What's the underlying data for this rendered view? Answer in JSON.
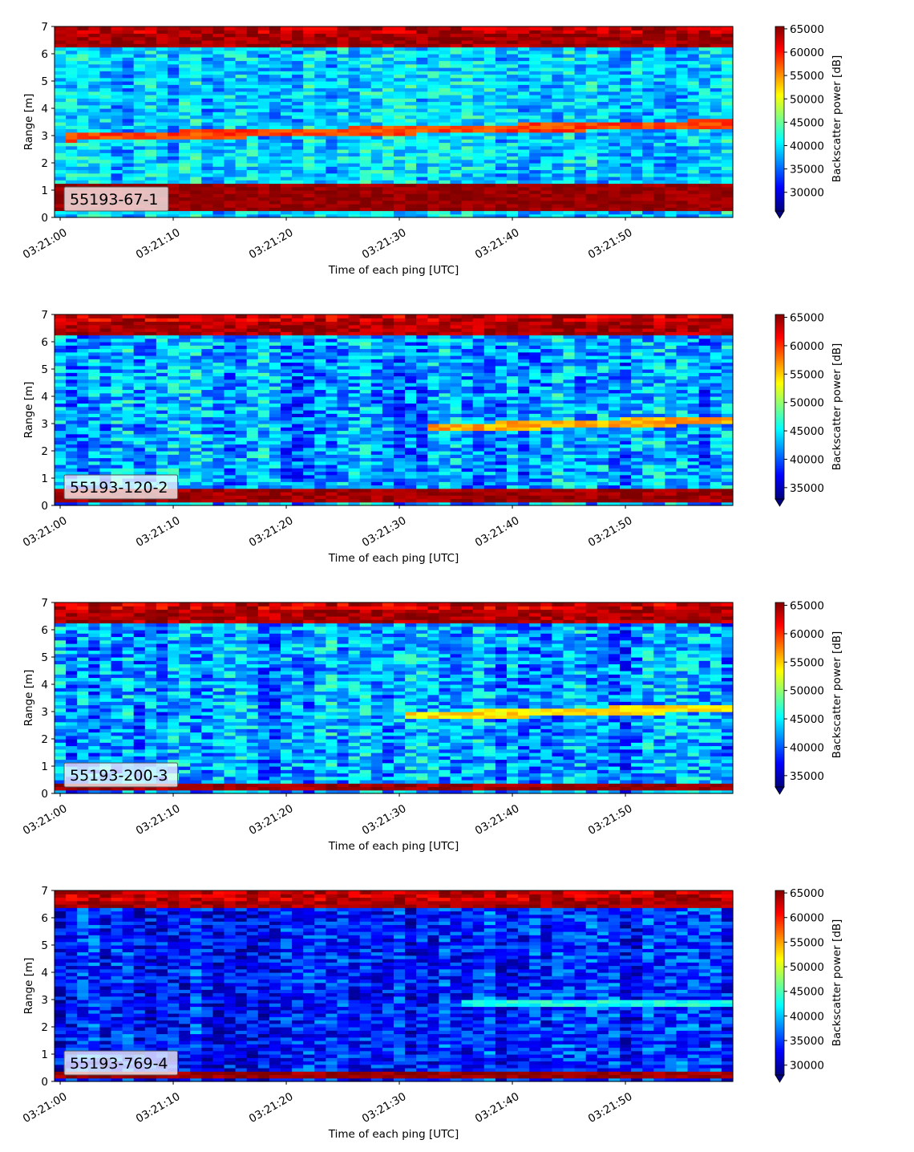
{
  "chart_data": [
    {
      "type": "heatmap",
      "label": "55193-67-1",
      "xlabel": "Time of each ping [UTC]",
      "ylabel": "Range [m]",
      "xticks": [
        "03:21:00",
        "03:21:10",
        "03:21:20",
        "03:21:30",
        "03:21:40",
        "03:21:50"
      ],
      "xlim_seconds": [
        -0.5,
        59.5
      ],
      "yticks": [
        0,
        1,
        2,
        3,
        4,
        5,
        6,
        7
      ],
      "ylim": [
        0,
        7
      ],
      "colorbar": {
        "label": "Backscatter power [dB]",
        "ticks": [
          30000,
          35000,
          40000,
          45000,
          50000,
          55000,
          60000,
          65000
        ],
        "vmin": 26000,
        "vmax": 65500,
        "extend": "min",
        "colormap": "jet"
      },
      "features": {
        "seabed_band": [
          0.2,
          1.2
        ],
        "surface_band": [
          6.3,
          7.0
        ],
        "target_track": {
          "start_range": 2.95,
          "end_range": 3.45,
          "peak": 60000
        },
        "background_mean": 39000
      }
    },
    {
      "type": "heatmap",
      "label": "55193-120-2",
      "xlabel": "Time of each ping [UTC]",
      "ylabel": "Range [m]",
      "xticks": [
        "03:21:00",
        "03:21:10",
        "03:21:20",
        "03:21:30",
        "03:21:40",
        "03:21:50"
      ],
      "xlim_seconds": [
        -0.5,
        59.5
      ],
      "yticks": [
        0,
        1,
        2,
        3,
        4,
        5,
        6,
        7
      ],
      "ylim": [
        0,
        7
      ],
      "colorbar": {
        "label": "Backscatter power [dB]",
        "ticks": [
          35000,
          40000,
          45000,
          50000,
          55000,
          60000,
          65000
        ],
        "vmin": 33000,
        "vmax": 65500,
        "extend": "min",
        "colormap": "jet"
      },
      "features": {
        "seabed_band": [
          0.1,
          0.6
        ],
        "surface_band": [
          6.3,
          7.0
        ],
        "target_track": {
          "start_range": 2.85,
          "end_range": 3.15,
          "peak": 58000,
          "start_seconds": 32
        },
        "background_mean": 42000
      }
    },
    {
      "type": "heatmap",
      "label": "55193-200-3",
      "xlabel": "Time of each ping [UTC]",
      "ylabel": "Range [m]",
      "xticks": [
        "03:21:00",
        "03:21:10",
        "03:21:20",
        "03:21:30",
        "03:21:40",
        "03:21:50"
      ],
      "xlim_seconds": [
        -0.5,
        59.5
      ],
      "yticks": [
        0,
        1,
        2,
        3,
        4,
        5,
        6,
        7
      ],
      "ylim": [
        0,
        7
      ],
      "colorbar": {
        "label": "Backscatter power [dB]",
        "ticks": [
          35000,
          40000,
          45000,
          50000,
          55000,
          60000,
          65000
        ],
        "vmin": 33000,
        "vmax": 65500,
        "extend": "min",
        "colormap": "jet"
      },
      "features": {
        "seabed_band": [
          0.1,
          0.4
        ],
        "surface_band": [
          6.3,
          7.0
        ],
        "target_track": {
          "start_range": 2.85,
          "end_range": 3.15,
          "peak": 56000,
          "start_seconds": 30
        },
        "background_mean": 42000
      }
    },
    {
      "type": "heatmap",
      "label": "55193-769-4",
      "xlabel": "Time of each ping [UTC]",
      "ylabel": "Range [m]",
      "xticks": [
        "03:21:00",
        "03:21:10",
        "03:21:20",
        "03:21:30",
        "03:21:40",
        "03:21:50"
      ],
      "xlim_seconds": [
        -0.5,
        59.5
      ],
      "yticks": [
        0,
        1,
        2,
        3,
        4,
        5,
        6,
        7
      ],
      "ylim": [
        0,
        7
      ],
      "colorbar": {
        "label": "Backscatter power [dB]",
        "ticks": [
          30000,
          35000,
          40000,
          45000,
          50000,
          55000,
          60000,
          65000
        ],
        "vmin": 28000,
        "vmax": 65500,
        "extend": "min",
        "colormap": "jet"
      },
      "features": {
        "seabed_band": [
          0.1,
          0.35
        ],
        "surface_band": [
          6.35,
          6.7
        ],
        "target_track": {
          "start_range": 2.85,
          "end_range": 2.9,
          "peak": 45000,
          "start_seconds": 35
        },
        "background_mean": 34000
      }
    }
  ]
}
